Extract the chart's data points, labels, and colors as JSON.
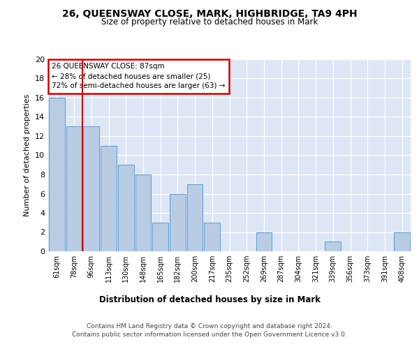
{
  "title": "26, QUEENSWAY CLOSE, MARK, HIGHBRIDGE, TA9 4PH",
  "subtitle": "Size of property relative to detached houses in Mark",
  "xlabel": "Distribution of detached houses by size in Mark",
  "ylabel": "Number of detached properties",
  "categories": [
    "61sqm",
    "78sqm",
    "96sqm",
    "113sqm",
    "130sqm",
    "148sqm",
    "165sqm",
    "182sqm",
    "200sqm",
    "217sqm",
    "235sqm",
    "252sqm",
    "269sqm",
    "287sqm",
    "304sqm",
    "321sqm",
    "339sqm",
    "356sqm",
    "373sqm",
    "391sqm",
    "408sqm"
  ],
  "values": [
    16,
    13,
    13,
    11,
    9,
    8,
    3,
    6,
    7,
    3,
    0,
    0,
    2,
    0,
    0,
    0,
    1,
    0,
    0,
    0,
    2
  ],
  "bar_color": "#b8cce4",
  "bar_edge_color": "#5b9bd5",
  "annotation_title": "26 QUEENSWAY CLOSE: 87sqm",
  "annotation_line1": "← 28% of detached houses are smaller (25)",
  "annotation_line2": "72% of semi-detached houses are larger (63) →",
  "annotation_box_color": "#ffffff",
  "annotation_box_edge_color": "#cc0000",
  "property_line_color": "#cc0000",
  "background_color": "#dce6f5",
  "ylim": [
    0,
    20
  ],
  "yticks": [
    0,
    2,
    4,
    6,
    8,
    10,
    12,
    14,
    16,
    18,
    20
  ],
  "footer_line1": "Contains HM Land Registry data © Crown copyright and database right 2024.",
  "footer_line2": "Contains public sector information licensed under the Open Government Licence v3.0."
}
